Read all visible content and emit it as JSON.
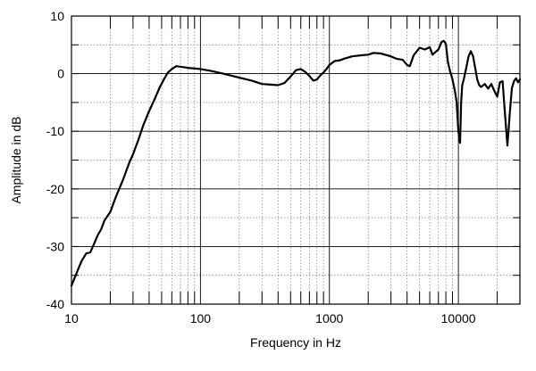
{
  "chart_data": {
    "type": "line",
    "title": "",
    "xlabel": "Frequency in Hz",
    "ylabel": "Amplitude in dB",
    "x_scale": "log",
    "xlim": [
      10,
      30000
    ],
    "ylim": [
      -40,
      10
    ],
    "x_ticks": [
      10,
      100,
      1000,
      10000
    ],
    "x_tick_labels": [
      "10",
      "100",
      "1000",
      "10000"
    ],
    "y_ticks": [
      10,
      0,
      -10,
      -20,
      -30,
      -40
    ],
    "y_tick_labels": [
      "10",
      "0",
      "-10",
      "-20",
      "-30",
      "-40"
    ],
    "grid": true,
    "series": [
      {
        "name": "",
        "color": "#000000",
        "x": [
          10,
          11,
          12,
          13,
          14,
          15,
          16,
          17,
          18,
          20,
          22,
          25,
          28,
          30,
          33,
          36,
          40,
          44,
          48,
          52,
          56,
          60,
          65,
          70,
          80,
          100,
          120,
          150,
          200,
          250,
          300,
          350,
          400,
          450,
          500,
          550,
          600,
          650,
          700,
          750,
          800,
          850,
          900,
          950,
          1000,
          1100,
          1200,
          1300,
          1500,
          1800,
          2000,
          2200,
          2500,
          2800,
          3000,
          3300,
          3700,
          4000,
          4200,
          4500,
          5000,
          5500,
          6000,
          6300,
          6600,
          7000,
          7400,
          7700,
          8000,
          8300,
          8600,
          9000,
          9400,
          9700,
          10000,
          10300,
          10500,
          10700,
          11000,
          11500,
          12000,
          12500,
          13000,
          13500,
          14000,
          14500,
          15000,
          16000,
          17000,
          18000,
          19000,
          20000,
          21000,
          22000,
          23000,
          24000,
          25000,
          26000,
          27000,
          28000,
          29000,
          30000
        ],
        "y": [
          -36.8,
          -34.5,
          -32.5,
          -31.2,
          -31.0,
          -29.5,
          -28,
          -27,
          -25.5,
          -24,
          -21.5,
          -18.5,
          -15.5,
          -14,
          -11.5,
          -9,
          -6.5,
          -4.5,
          -2.5,
          -1,
          0.2,
          0.8,
          1.3,
          1.2,
          1.0,
          0.8,
          0.5,
          0.0,
          -0.7,
          -1.2,
          -1.8,
          -1.9,
          -2.0,
          -1.6,
          -0.5,
          0.6,
          0.8,
          0.3,
          -0.4,
          -1.2,
          -1.0,
          -0.3,
          0.2,
          0.8,
          1.5,
          2.2,
          2.3,
          2.6,
          3.0,
          3.2,
          3.3,
          3.6,
          3.5,
          3.2,
          3.0,
          2.6,
          2.4,
          1.5,
          1.3,
          3.2,
          4.5,
          4.2,
          4.6,
          3.3,
          3.7,
          4.2,
          5.5,
          5.7,
          5.2,
          2.0,
          0.5,
          -1.0,
          -3.0,
          -5.0,
          -10.0,
          -12.0,
          -5.0,
          -2.0,
          -1.0,
          1.0,
          3.0,
          3.9,
          3.0,
          1.0,
          -1.0,
          -2.0,
          -2.3,
          -1.8,
          -2.6,
          -1.8,
          -3.0,
          -4.0,
          -1.5,
          -1.3,
          -7.0,
          -12.5,
          -7.0,
          -2.5,
          -1.3,
          -0.8,
          -1.5,
          -1.0
        ]
      }
    ]
  }
}
